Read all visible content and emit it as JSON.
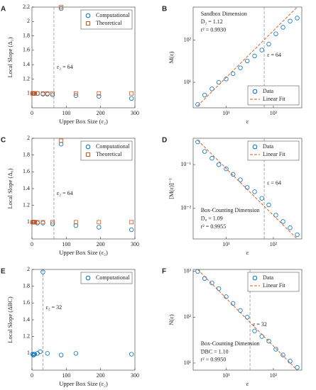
{
  "chart_data": [
    {
      "type": "scatter",
      "label": "A",
      "xlabel": "Upper Box Size (ε₂)",
      "ylabel": "Local Slope (Δ₂)",
      "xlim": [
        0,
        300
      ],
      "xticks": [
        0,
        100,
        200,
        300
      ],
      "ylim": [
        0.8,
        2.2
      ],
      "yticks": [
        1,
        1.2,
        1.4,
        1.6,
        1.8,
        2,
        2.2
      ],
      "vline": 64,
      "annotations": [
        "ε₂ = 64"
      ],
      "legend": "upper right",
      "series": [
        {
          "name": "Computational",
          "marker": "circle",
          "color": "#0072bd",
          "x": [
            2,
            4,
            6,
            8,
            16,
            32,
            45,
            60,
            85,
            128,
            195,
            290
          ],
          "values": [
            1,
            1,
            1,
            1,
            1,
            0.99,
            0.99,
            0.98,
            2.18,
            0.97,
            0.96,
            0.93
          ]
        },
        {
          "name": "Theoretical",
          "marker": "square",
          "color": "#d95319",
          "x": [
            2,
            4,
            6,
            8,
            16,
            32,
            45,
            60,
            85,
            128,
            195,
            290
          ],
          "values": [
            1,
            1,
            1,
            1,
            1,
            1,
            1,
            1,
            2.2,
            1,
            1,
            1
          ]
        }
      ]
    },
    {
      "type": "scatter",
      "label": "B",
      "xlabel": "ε",
      "ylabel": "M(ε)",
      "xscale": "log",
      "yscale": "log",
      "xlim": [
        2,
        400
      ],
      "xticks": [
        {
          "value": 10,
          "label": "10¹"
        },
        {
          "value": 100,
          "label": "10²"
        }
      ],
      "ylim": [
        2.5,
        600
      ],
      "yticks": [
        {
          "value": 10,
          "label": "10¹"
        },
        {
          "value": 100,
          "label": "10²"
        }
      ],
      "vline": 64,
      "annotations": [
        "Sandbox Dimension",
        "D₂ = 1.12",
        "r² = 0.9930",
        "ε = 64"
      ],
      "legend": "lower right",
      "series": [
        {
          "name": "Data",
          "marker": "circle",
          "color": "#0072bd",
          "x": [
            2.5,
            3.5,
            5,
            7,
            10,
            14,
            20,
            28,
            40,
            57,
            80,
            113,
            160,
            226,
            320
          ],
          "values": [
            3,
            5,
            7,
            10,
            12,
            16,
            22,
            32,
            42,
            58,
            80,
            140,
            200,
            280,
            330
          ]
        },
        {
          "name": "Linear Fit",
          "marker": "line",
          "color": "#d95319",
          "x": [
            2.5,
            320
          ],
          "values": [
            2.8,
            600
          ]
        }
      ]
    },
    {
      "type": "scatter",
      "label": "C",
      "xlabel": "Upper Box Size (ε₂)",
      "ylabel": "Local Slope (Δ₀)",
      "xlim": [
        0,
        300
      ],
      "xticks": [
        0,
        100,
        200,
        300
      ],
      "ylim": [
        0.8,
        2
      ],
      "yticks": [
        1,
        1.2,
        1.4,
        1.6,
        1.8,
        2
      ],
      "vline": 64,
      "annotations": [
        "ε₂ = 64"
      ],
      "legend": "upper right",
      "series": [
        {
          "name": "Computational",
          "marker": "circle",
          "color": "#0072bd",
          "x": [
            2,
            4,
            6,
            8,
            16,
            32,
            60,
            85,
            128,
            195,
            290
          ],
          "values": [
            1,
            1,
            1,
            1,
            0.99,
            0.99,
            0.98,
            1.93,
            0.96,
            0.94,
            0.91
          ]
        },
        {
          "name": "Theoretical",
          "marker": "square",
          "color": "#d95319",
          "x": [
            2,
            4,
            6,
            8,
            16,
            32,
            60,
            85,
            128,
            195,
            290
          ],
          "values": [
            1,
            1,
            1,
            1,
            1,
            1,
            1,
            1.97,
            1,
            1,
            1
          ]
        }
      ]
    },
    {
      "type": "scatter",
      "label": "D",
      "xlabel": "ε",
      "ylabel": "[M(ε)]⁻¹",
      "xscale": "log",
      "yscale": "log",
      "xlim": [
        2,
        400
      ],
      "xticks": [
        {
          "value": 10,
          "label": "10¹"
        },
        {
          "value": 100,
          "label": "10²"
        }
      ],
      "ylim": [
        0.002,
        0.4
      ],
      "yticks": [
        {
          "value": 0.01,
          "label": "10⁻²"
        },
        {
          "value": 0.1,
          "label": "10⁻¹"
        }
      ],
      "vline": 64,
      "annotations": [
        "ε = 64",
        "Box-Counting Dimension",
        "D₀ = 1.09",
        "r² = 0.9955"
      ],
      "legend": "upper right",
      "series": [
        {
          "name": "Data",
          "marker": "circle",
          "color": "#0072bd",
          "x": [
            2.5,
            3.5,
            5,
            7,
            10,
            14,
            20,
            28,
            40,
            57,
            80,
            113,
            160,
            226,
            320
          ],
          "values": [
            0.33,
            0.2,
            0.14,
            0.1,
            0.08,
            0.06,
            0.045,
            0.03,
            0.024,
            0.017,
            0.012,
            0.007,
            0.005,
            0.0036,
            0.0025
          ]
        },
        {
          "name": "Linear Fit",
          "marker": "line",
          "color": "#d95319",
          "x": [
            2.5,
            320
          ],
          "values": [
            0.36,
            0.002
          ]
        }
      ]
    },
    {
      "type": "scatter",
      "label": "E",
      "xlabel": "Upper Box Size (ε₂)",
      "ylabel": "Local Slope (ΔBC)",
      "xlim": [
        0,
        300
      ],
      "xticks": [
        0,
        100,
        200,
        300
      ],
      "ylim": [
        0.8,
        2
      ],
      "yticks": [
        1,
        1.2,
        1.4,
        1.6,
        1.8,
        2
      ],
      "vline": 32,
      "annotations": [
        "ε₂ = 32"
      ],
      "legend": "upper right",
      "series": [
        {
          "name": "Computational",
          "marker": "circle",
          "color": "#0072bd",
          "x": [
            2,
            4,
            6,
            8,
            16,
            24,
            32,
            45,
            85,
            128,
            290
          ],
          "values": [
            0.99,
            0.98,
            0.99,
            0.99,
            1,
            1.02,
            1.97,
            1,
            0.98,
            1,
            0.99
          ]
        }
      ]
    },
    {
      "type": "scatter",
      "label": "F",
      "xlabel": "ε",
      "ylabel": "N(ε)",
      "xscale": "log",
      "yscale": "log",
      "xlim": [
        2,
        400
      ],
      "xticks": [
        {
          "value": 10,
          "label": "10¹"
        },
        {
          "value": 100,
          "label": "10²"
        }
      ],
      "ylim": [
        7,
        1100
      ],
      "yticks": [
        {
          "value": 10,
          "label": "10¹"
        },
        {
          "value": 100,
          "label": "10²"
        },
        {
          "value": 1000,
          "label": "10³"
        }
      ],
      "vline": 32,
      "annotations": [
        "ε = 32",
        "Box-Counting Dimension",
        "DBC = 1.10",
        "r² = 0.9950"
      ],
      "legend": "upper right",
      "series": [
        {
          "name": "Data",
          "marker": "circle",
          "color": "#0072bd",
          "x": [
            2.5,
            3.5,
            5,
            7,
            10,
            14,
            20,
            28,
            40,
            57,
            80,
            113,
            160,
            226,
            320
          ],
          "values": [
            1000,
            700,
            560,
            420,
            280,
            200,
            140,
            100,
            50,
            38,
            30,
            20,
            15,
            11,
            8
          ]
        },
        {
          "name": "Linear Fit",
          "marker": "line",
          "color": "#d95319",
          "x": [
            2.5,
            320
          ],
          "values": [
            1100,
            7
          ]
        }
      ]
    }
  ]
}
